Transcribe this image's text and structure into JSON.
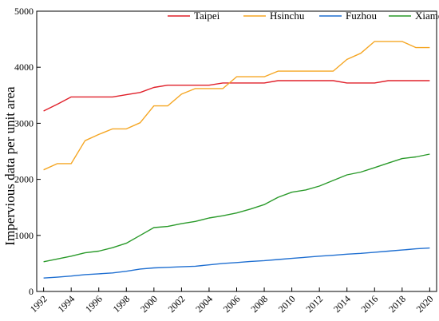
{
  "chart_data": {
    "type": "line",
    "title": "",
    "xlabel": "",
    "ylabel": "Impervious data per unit area",
    "xlim": [
      1991.5,
      2020.5
    ],
    "ylim": [
      0,
      5000
    ],
    "x": [
      1992,
      1993,
      1994,
      1995,
      1996,
      1997,
      1998,
      1999,
      2000,
      2001,
      2002,
      2003,
      2004,
      2005,
      2006,
      2007,
      2008,
      2009,
      2010,
      2011,
      2012,
      2013,
      2014,
      2015,
      2016,
      2017,
      2018,
      2019,
      2020
    ],
    "x_tick_labels": [
      "1992",
      "1994",
      "1996",
      "1998",
      "2000",
      "2002",
      "2004",
      "2006",
      "2008",
      "2010",
      "2012",
      "2014",
      "2016",
      "2018",
      "2020"
    ],
    "x_tick_values": [
      1992,
      1994,
      1996,
      1998,
      2000,
      2002,
      2004,
      2006,
      2008,
      2010,
      2012,
      2014,
      2016,
      2018,
      2020
    ],
    "y_tick_labels": [
      "0",
      "1000",
      "2000",
      "3000",
      "4000",
      "5000"
    ],
    "y_tick_values": [
      0,
      1000,
      2000,
      3000,
      4000,
      5000
    ],
    "grid": false,
    "legend_position": "top",
    "series": [
      {
        "name": "Taipei",
        "color": "#e0202a",
        "values": [
          3220,
          3340,
          3470,
          3470,
          3470,
          3470,
          3510,
          3550,
          3640,
          3680,
          3680,
          3680,
          3680,
          3720,
          3720,
          3720,
          3720,
          3760,
          3760,
          3760,
          3760,
          3760,
          3720,
          3720,
          3720,
          3760,
          3760,
          3760,
          3760
        ]
      },
      {
        "name": "Hsinchu",
        "color": "#f5a623",
        "values": [
          2170,
          2280,
          2280,
          2690,
          2800,
          2900,
          2900,
          3010,
          3310,
          3310,
          3520,
          3620,
          3620,
          3620,
          3830,
          3830,
          3830,
          3930,
          3930,
          3930,
          3930,
          3930,
          4140,
          4250,
          4460,
          4460,
          4460,
          4350,
          4350
        ]
      },
      {
        "name": "Fuzhou",
        "color": "#1f6fd1",
        "values": [
          240,
          255,
          275,
          300,
          315,
          330,
          360,
          400,
          420,
          430,
          440,
          450,
          475,
          500,
          515,
          535,
          550,
          570,
          590,
          610,
          630,
          645,
          665,
          680,
          700,
          720,
          740,
          760,
          775
        ]
      },
      {
        "name": "Xiamen",
        "color": "#2a9a2a",
        "values": [
          530,
          580,
          630,
          690,
          720,
          780,
          860,
          1000,
          1140,
          1160,
          1210,
          1250,
          1310,
          1350,
          1400,
          1470,
          1550,
          1680,
          1770,
          1810,
          1880,
          1980,
          2080,
          2130,
          2210,
          2290,
          2370,
          2400,
          2450
        ]
      }
    ]
  }
}
